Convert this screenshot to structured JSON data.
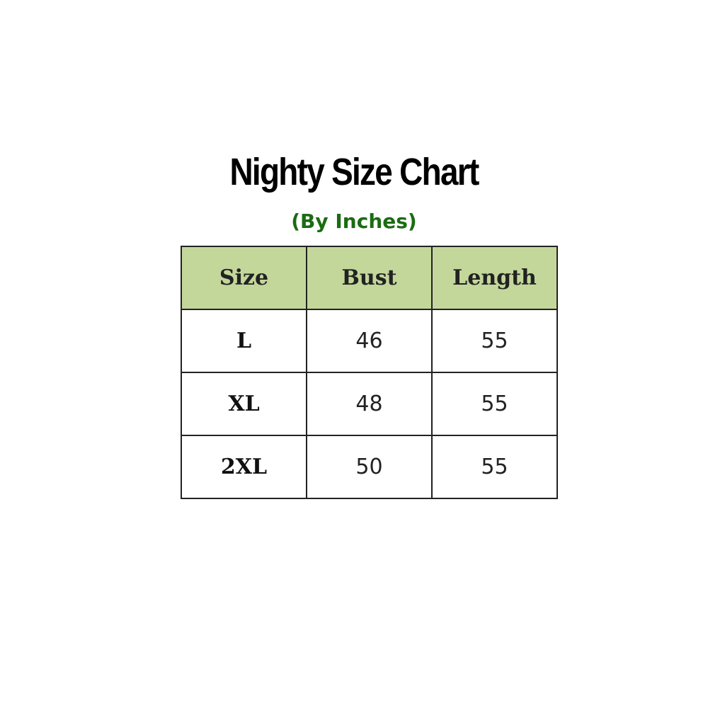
{
  "title": "Nighty Size Chart",
  "subtitle": "(By Inches)",
  "header_color": "#c4d79b",
  "table": {
    "headers": [
      "Size",
      "Bust",
      "Length"
    ],
    "rows": [
      [
        "L",
        "46",
        "55"
      ],
      [
        "XL",
        "48",
        "55"
      ],
      [
        "2XL",
        "50",
        "55"
      ]
    ]
  }
}
